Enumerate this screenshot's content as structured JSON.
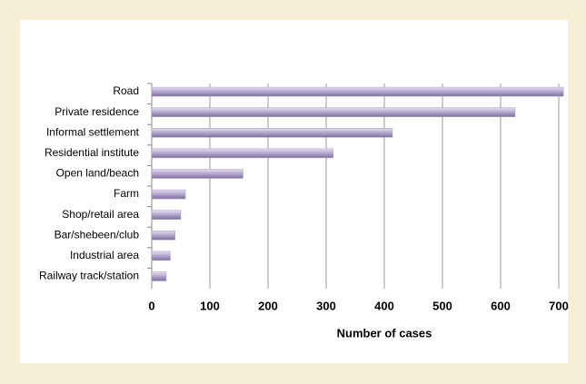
{
  "chart_data": {
    "type": "barh",
    "categories": [
      "Road",
      "Private residence",
      "Informal settlement",
      "Residential institute",
      "Open land/beach",
      "Farm",
      "Shop/retail area",
      "Bar/shebeen/club",
      "Industrial area",
      "Railway track/station"
    ],
    "values": [
      708,
      625,
      414,
      312,
      157,
      58,
      50,
      40,
      32,
      25
    ],
    "color": "#a99cc4",
    "xlabel": "Number of cases",
    "xlim": [
      0,
      700
    ],
    "xticks": [
      0,
      100,
      200,
      300,
      400,
      500,
      600,
      700
    ],
    "grid": true
  }
}
